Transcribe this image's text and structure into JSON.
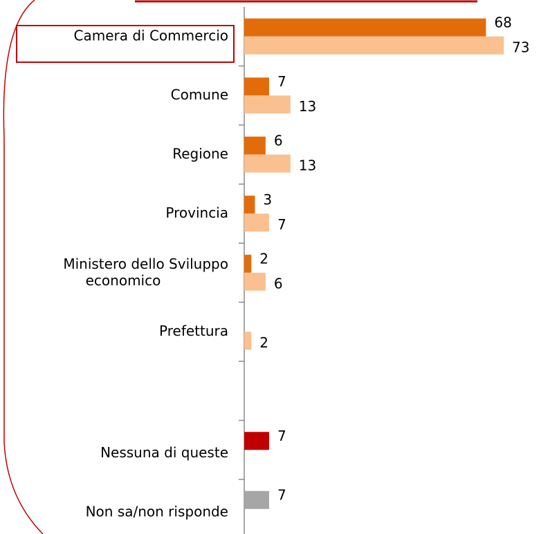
{
  "chart_data": {
    "type": "bar",
    "orientation": "horizontal",
    "categories": [
      "Camera di Commercio",
      "Comune",
      "Regione",
      "Provincia",
      [
        "Ministero dello Sviluppo",
        "economico"
      ],
      "Prefettura",
      null,
      "Nessuna di queste",
      "Non sa/non risponde"
    ],
    "series": [
      {
        "color": "#e36c0a",
        "values": [
          68,
          7,
          6,
          3,
          2,
          null,
          null,
          null,
          null
        ]
      },
      {
        "color": "#fac090",
        "values": [
          73,
          13,
          13,
          7,
          6,
          2,
          null,
          null,
          null
        ]
      },
      {
        "color": "#c00000",
        "values": [
          null,
          null,
          null,
          null,
          null,
          null,
          null,
          7,
          null
        ]
      },
      {
        "color": "#a6a6a6",
        "values": [
          null,
          null,
          null,
          null,
          null,
          null,
          null,
          null,
          7
        ]
      }
    ],
    "xlim": [
      0,
      80
    ]
  }
}
